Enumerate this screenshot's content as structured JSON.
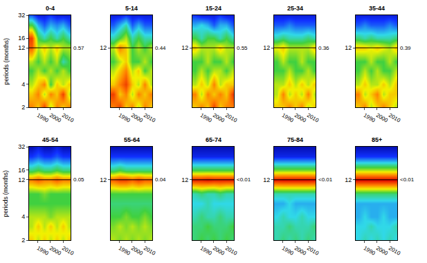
{
  "chart_data": {
    "type": "heatmap",
    "ylabel": "periods (months)",
    "log": "y",
    "xlim": [
      1983,
      2016
    ],
    "xticks": [
      1990,
      2000,
      2010
    ],
    "ylim": [
      2,
      32
    ],
    "zlim": [
      0,
      1
    ],
    "hline": 12,
    "x": [
      1985,
      1990,
      1995,
      2000,
      2005,
      2010,
      2015
    ],
    "y": [
      2,
      3,
      4,
      6,
      8,
      12,
      16,
      24,
      32
    ],
    "panels": [
      {
        "title": "0-4",
        "annotation": "0.57",
        "yticks": [
          2,
          4,
          12,
          16,
          32
        ],
        "cells": [
          [
            0.8,
            0.7,
            0.9,
            0.6,
            0.8,
            0.7,
            0.8
          ],
          [
            0.7,
            0.8,
            0.6,
            0.8,
            0.7,
            0.9,
            0.6
          ],
          [
            0.6,
            0.7,
            0.8,
            0.5,
            0.7,
            0.6,
            0.7
          ],
          [
            0.5,
            0.6,
            0.5,
            0.6,
            0.5,
            0.6,
            0.5
          ],
          [
            0.6,
            0.5,
            0.6,
            0.5,
            0.6,
            0.4,
            0.5
          ],
          [
            0.85,
            0.6,
            0.7,
            0.6,
            0.7,
            0.6,
            0.6
          ],
          [
            0.9,
            0.5,
            0.4,
            0.5,
            0.4,
            0.5,
            0.4
          ],
          [
            0.5,
            0.3,
            0.2,
            0.3,
            0.25,
            0.3,
            0.2
          ],
          [
            0.2,
            0.1,
            0.1,
            0.15,
            0.1,
            0.1,
            0.1
          ]
        ]
      },
      {
        "title": "5-14",
        "annotation": "0.44",
        "yticks": [
          12
        ],
        "cells": [
          [
            0.8,
            0.9,
            0.7,
            0.8,
            0.6,
            0.8,
            0.7
          ],
          [
            0.9,
            0.7,
            0.8,
            0.6,
            0.8,
            0.7,
            0.8
          ],
          [
            0.7,
            0.8,
            0.9,
            0.7,
            0.6,
            0.8,
            0.6
          ],
          [
            0.6,
            0.7,
            0.8,
            0.6,
            0.7,
            0.5,
            0.6
          ],
          [
            0.5,
            0.6,
            0.7,
            0.5,
            0.5,
            0.6,
            0.5
          ],
          [
            0.6,
            0.8,
            0.7,
            0.5,
            0.6,
            0.5,
            0.6
          ],
          [
            0.4,
            0.5,
            0.6,
            0.4,
            0.5,
            0.4,
            0.4
          ],
          [
            0.2,
            0.3,
            0.4,
            0.2,
            0.3,
            0.2,
            0.2
          ],
          [
            0.1,
            0.1,
            0.15,
            0.1,
            0.1,
            0.1,
            0.1
          ]
        ]
      },
      {
        "title": "15-24",
        "annotation": "0.55",
        "yticks": [
          12
        ],
        "cells": [
          [
            0.7,
            0.8,
            0.7,
            0.9,
            0.7,
            0.8,
            0.8
          ],
          [
            0.8,
            0.6,
            0.8,
            0.7,
            0.8,
            0.7,
            0.9
          ],
          [
            0.6,
            0.7,
            0.6,
            0.8,
            0.6,
            0.7,
            0.7
          ],
          [
            0.5,
            0.6,
            0.5,
            0.6,
            0.6,
            0.5,
            0.6
          ],
          [
            0.5,
            0.5,
            0.6,
            0.5,
            0.5,
            0.6,
            0.5
          ],
          [
            0.7,
            0.6,
            0.6,
            0.6,
            0.7,
            0.6,
            0.6
          ],
          [
            0.5,
            0.4,
            0.5,
            0.5,
            0.4,
            0.5,
            0.4
          ],
          [
            0.3,
            0.35,
            0.3,
            0.2,
            0.3,
            0.3,
            0.2
          ],
          [
            0.15,
            0.1,
            0.1,
            0.1,
            0.15,
            0.1,
            0.1
          ]
        ]
      },
      {
        "title": "25-34",
        "annotation": "0.36",
        "yticks": [
          12
        ],
        "cells": [
          [
            0.7,
            0.7,
            0.8,
            0.7,
            0.8,
            0.6,
            0.7
          ],
          [
            0.6,
            0.8,
            0.6,
            0.7,
            0.6,
            0.8,
            0.6
          ],
          [
            0.6,
            0.6,
            0.7,
            0.6,
            0.7,
            0.6,
            0.7
          ],
          [
            0.5,
            0.5,
            0.6,
            0.5,
            0.5,
            0.6,
            0.5
          ],
          [
            0.5,
            0.6,
            0.5,
            0.5,
            0.6,
            0.5,
            0.5
          ],
          [
            0.65,
            0.7,
            0.6,
            0.6,
            0.6,
            0.6,
            0.7
          ],
          [
            0.4,
            0.45,
            0.4,
            0.4,
            0.4,
            0.45,
            0.4
          ],
          [
            0.2,
            0.2,
            0.25,
            0.2,
            0.2,
            0.2,
            0.2
          ],
          [
            0.1,
            0.1,
            0.1,
            0.1,
            0.1,
            0.1,
            0.1
          ]
        ]
      },
      {
        "title": "35-44",
        "annotation": "0.39",
        "yticks": [
          12
        ],
        "cells": [
          [
            0.7,
            0.8,
            0.6,
            0.7,
            0.8,
            0.7,
            0.6
          ],
          [
            0.8,
            0.6,
            0.7,
            0.8,
            0.6,
            0.7,
            0.7
          ],
          [
            0.6,
            0.7,
            0.6,
            0.6,
            0.7,
            0.6,
            0.7
          ],
          [
            0.5,
            0.6,
            0.5,
            0.6,
            0.5,
            0.5,
            0.6
          ],
          [
            0.5,
            0.5,
            0.6,
            0.5,
            0.5,
            0.6,
            0.5
          ],
          [
            0.7,
            0.7,
            0.65,
            0.7,
            0.65,
            0.6,
            0.7
          ],
          [
            0.45,
            0.4,
            0.45,
            0.4,
            0.4,
            0.4,
            0.45
          ],
          [
            0.2,
            0.25,
            0.2,
            0.2,
            0.2,
            0.25,
            0.2
          ],
          [
            0.1,
            0.1,
            0.1,
            0.1,
            0.1,
            0.1,
            0.1
          ]
        ]
      },
      {
        "title": "45-54",
        "annotation": "0.05",
        "yticks": [
          2,
          4,
          12,
          16,
          32
        ],
        "cells": [
          [
            0.7,
            0.6,
            0.7,
            0.6,
            0.7,
            0.6,
            0.7
          ],
          [
            0.6,
            0.7,
            0.6,
            0.7,
            0.6,
            0.7,
            0.6
          ],
          [
            0.6,
            0.6,
            0.6,
            0.55,
            0.6,
            0.6,
            0.6
          ],
          [
            0.5,
            0.5,
            0.5,
            0.5,
            0.5,
            0.5,
            0.5
          ],
          [
            0.5,
            0.5,
            0.55,
            0.5,
            0.5,
            0.5,
            0.5
          ],
          [
            0.8,
            0.85,
            0.8,
            0.8,
            0.85,
            0.8,
            0.8
          ],
          [
            0.45,
            0.5,
            0.45,
            0.45,
            0.5,
            0.45,
            0.45
          ],
          [
            0.15,
            0.2,
            0.15,
            0.15,
            0.2,
            0.15,
            0.15
          ],
          [
            0.05,
            0.1,
            0.05,
            0.05,
            0.1,
            0.05,
            0.05
          ]
        ]
      },
      {
        "title": "55-64",
        "annotation": "0.04",
        "yticks": [
          12
        ],
        "cells": [
          [
            0.6,
            0.55,
            0.6,
            0.55,
            0.6,
            0.55,
            0.6
          ],
          [
            0.55,
            0.6,
            0.55,
            0.6,
            0.55,
            0.6,
            0.55
          ],
          [
            0.5,
            0.5,
            0.55,
            0.5,
            0.5,
            0.55,
            0.5
          ],
          [
            0.45,
            0.45,
            0.45,
            0.45,
            0.45,
            0.45,
            0.45
          ],
          [
            0.5,
            0.5,
            0.5,
            0.5,
            0.5,
            0.5,
            0.5
          ],
          [
            0.85,
            0.9,
            0.9,
            0.85,
            0.9,
            0.85,
            0.85
          ],
          [
            0.45,
            0.5,
            0.45,
            0.45,
            0.45,
            0.45,
            0.45
          ],
          [
            0.15,
            0.15,
            0.15,
            0.15,
            0.15,
            0.15,
            0.15
          ],
          [
            0.05,
            0.05,
            0.05,
            0.05,
            0.05,
            0.05,
            0.05
          ]
        ]
      },
      {
        "title": "65-74",
        "annotation": "<0.01",
        "yticks": [
          12
        ],
        "cells": [
          [
            0.45,
            0.5,
            0.45,
            0.5,
            0.45,
            0.5,
            0.45
          ],
          [
            0.45,
            0.45,
            0.5,
            0.45,
            0.45,
            0.45,
            0.5
          ],
          [
            0.4,
            0.45,
            0.4,
            0.4,
            0.45,
            0.4,
            0.4
          ],
          [
            0.35,
            0.35,
            0.4,
            0.35,
            0.35,
            0.35,
            0.35
          ],
          [
            0.4,
            0.45,
            0.4,
            0.4,
            0.45,
            0.4,
            0.4
          ],
          [
            0.95,
            0.95,
            0.97,
            0.95,
            0.95,
            0.95,
            0.95
          ],
          [
            0.5,
            0.5,
            0.5,
            0.5,
            0.5,
            0.5,
            0.5
          ],
          [
            0.12,
            0.12,
            0.12,
            0.12,
            0.12,
            0.12,
            0.12
          ],
          [
            0.05,
            0.05,
            0.05,
            0.05,
            0.05,
            0.05,
            0.05
          ]
        ]
      },
      {
        "title": "75-84",
        "annotation": "<0.01",
        "yticks": [
          12
        ],
        "cells": [
          [
            0.4,
            0.45,
            0.4,
            0.45,
            0.4,
            0.45,
            0.4
          ],
          [
            0.4,
            0.4,
            0.45,
            0.4,
            0.4,
            0.4,
            0.45
          ],
          [
            0.35,
            0.4,
            0.35,
            0.35,
            0.4,
            0.35,
            0.35
          ],
          [
            0.3,
            0.3,
            0.35,
            0.3,
            0.3,
            0.3,
            0.3
          ],
          [
            0.4,
            0.4,
            0.4,
            0.4,
            0.4,
            0.4,
            0.4
          ],
          [
            0.97,
            0.98,
            0.98,
            0.98,
            0.98,
            0.98,
            0.97
          ],
          [
            0.55,
            0.55,
            0.55,
            0.55,
            0.55,
            0.55,
            0.55
          ],
          [
            0.12,
            0.12,
            0.12,
            0.12,
            0.12,
            0.12,
            0.12
          ],
          [
            0.05,
            0.05,
            0.05,
            0.05,
            0.05,
            0.05,
            0.05
          ]
        ]
      },
      {
        "title": "85+",
        "annotation": "<0.01",
        "yticks": [
          12
        ],
        "cells": [
          [
            0.35,
            0.4,
            0.35,
            0.4,
            0.35,
            0.4,
            0.35
          ],
          [
            0.35,
            0.35,
            0.4,
            0.35,
            0.35,
            0.35,
            0.4
          ],
          [
            0.3,
            0.35,
            0.3,
            0.3,
            0.35,
            0.3,
            0.3
          ],
          [
            0.3,
            0.3,
            0.3,
            0.3,
            0.3,
            0.3,
            0.3
          ],
          [
            0.45,
            0.45,
            0.45,
            0.45,
            0.45,
            0.45,
            0.45
          ],
          [
            0.99,
            0.99,
            0.99,
            0.99,
            0.99,
            0.99,
            0.99
          ],
          [
            0.6,
            0.6,
            0.6,
            0.6,
            0.6,
            0.6,
            0.6
          ],
          [
            0.15,
            0.15,
            0.15,
            0.15,
            0.15,
            0.15,
            0.15
          ],
          [
            0.05,
            0.05,
            0.05,
            0.05,
            0.05,
            0.05,
            0.05
          ]
        ]
      }
    ]
  }
}
